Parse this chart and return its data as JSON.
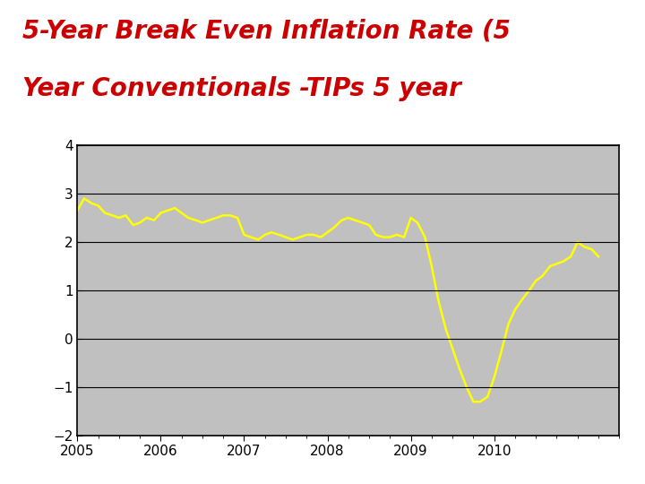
{
  "title_line1": "5-Year Break Even Inflation Rate (5",
  "title_line2": "Year Conventionals -TIPs 5 year",
  "title_color": "#CC0000",
  "title_fontsize": 20,
  "title_fontstyle": "italic",
  "title_fontweight": "bold",
  "line_color": "#FFFF00",
  "line_width": 1.8,
  "plot_bg_color": "#C0C0C0",
  "outer_bg_color": "#FFFFFF",
  "border_color": "#B8860B",
  "ylim": [
    -2,
    4
  ],
  "yticks": [
    -2,
    -1,
    0,
    1,
    2,
    3,
    4
  ],
  "xtick_labels": [
    "2005",
    "2006",
    "2007",
    "2008",
    "2009",
    "2010"
  ],
  "x": [
    0,
    0.08,
    0.17,
    0.25,
    0.33,
    0.42,
    0.5,
    0.58,
    0.67,
    0.75,
    0.83,
    0.92,
    1.0,
    1.08,
    1.17,
    1.25,
    1.33,
    1.42,
    1.5,
    1.58,
    1.67,
    1.75,
    1.83,
    1.92,
    2.0,
    2.08,
    2.17,
    2.25,
    2.33,
    2.42,
    2.5,
    2.58,
    2.67,
    2.75,
    2.83,
    2.92,
    3.0,
    3.08,
    3.17,
    3.25,
    3.33,
    3.42,
    3.5,
    3.58,
    3.67,
    3.75,
    3.83,
    3.92,
    4.0,
    4.08,
    4.17,
    4.25,
    4.33,
    4.42,
    4.5,
    4.58,
    4.67,
    4.75,
    4.83,
    4.92,
    5.0,
    5.08,
    5.17,
    5.25,
    5.33,
    5.42,
    5.5,
    5.58,
    5.67,
    5.75,
    5.83,
    5.92,
    6.0,
    6.08,
    6.17,
    6.25
  ],
  "y": [
    2.65,
    2.9,
    2.8,
    2.75,
    2.6,
    2.55,
    2.5,
    2.55,
    2.35,
    2.4,
    2.5,
    2.45,
    2.6,
    2.65,
    2.7,
    2.6,
    2.5,
    2.45,
    2.4,
    2.45,
    2.5,
    2.55,
    2.55,
    2.5,
    2.15,
    2.1,
    2.05,
    2.15,
    2.2,
    2.15,
    2.1,
    2.05,
    2.1,
    2.15,
    2.15,
    2.1,
    2.2,
    2.3,
    2.45,
    2.5,
    2.45,
    2.4,
    2.35,
    2.15,
    2.1,
    2.1,
    2.15,
    2.1,
    2.5,
    2.4,
    2.1,
    1.5,
    0.8,
    0.2,
    -0.2,
    -0.6,
    -1.0,
    -1.3,
    -1.3,
    -1.2,
    -0.8,
    -0.3,
    0.3,
    0.6,
    0.8,
    1.0,
    1.2,
    1.3,
    1.5,
    1.55,
    1.6,
    1.7,
    2.0,
    1.9,
    1.85,
    1.7
  ]
}
